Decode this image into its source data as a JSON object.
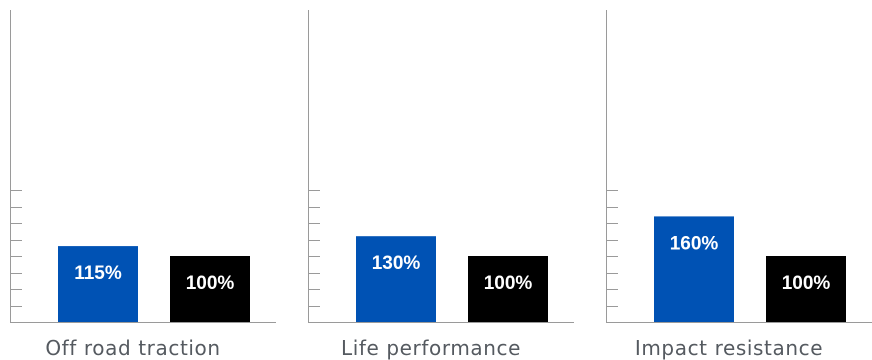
{
  "colors": {
    "primary": "#0052b4",
    "comparison": "#000000",
    "axis": "#9a9a9a",
    "label_text": "#555a60",
    "bar_text": "#ffffff"
  },
  "chart_data": [
    {
      "type": "bar",
      "categories": [
        "Off road traction"
      ],
      "series": [
        {
          "color": "#0052b4",
          "values": [
            115
          ],
          "labels": [
            "115%"
          ]
        },
        {
          "color": "#000000",
          "values": [
            100
          ],
          "labels": [
            "100%"
          ]
        }
      ],
      "xlabel": "Off road traction",
      "ylim": [
        0,
        200
      ],
      "grid": false
    },
    {
      "type": "bar",
      "categories": [
        "Life performance"
      ],
      "series": [
        {
          "color": "#0052b4",
          "values": [
            130
          ],
          "labels": [
            "130%"
          ]
        },
        {
          "color": "#000000",
          "values": [
            100
          ],
          "labels": [
            "100%"
          ]
        }
      ],
      "xlabel": "Life performance",
      "ylim": [
        0,
        200
      ],
      "grid": false
    },
    {
      "type": "bar",
      "categories": [
        "Impact resistance"
      ],
      "series": [
        {
          "color": "#0052b4",
          "values": [
            160
          ],
          "labels": [
            "160%"
          ]
        },
        {
          "color": "#000000",
          "values": [
            100
          ],
          "labels": [
            "100%"
          ]
        }
      ],
      "xlabel": "Impact resistance",
      "ylim": [
        0,
        200
      ],
      "grid": false
    }
  ]
}
